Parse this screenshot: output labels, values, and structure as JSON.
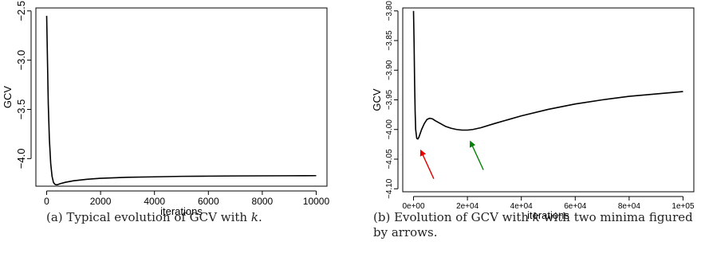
{
  "chart_data": [
    {
      "type": "line",
      "title": "",
      "xlabel": "iterations",
      "ylabel": "GCV",
      "xlim": [
        0,
        10000
      ],
      "ylim": [
        -4.25,
        -2.5
      ],
      "x_ticks": [
        0,
        2000,
        4000,
        6000,
        8000,
        10000
      ],
      "x_tick_labels": [
        "0",
        "2000",
        "4000",
        "6000",
        "8000",
        "10000"
      ],
      "y_ticks": [
        -2.5,
        -3.0,
        -3.5,
        -4.0
      ],
      "y_tick_labels": [
        "-2.5",
        "-3.0",
        "-3.5",
        "-4.0"
      ],
      "grid": false,
      "series": [
        {
          "color": "#000000",
          "x": [
            0,
            30,
            60,
            100,
            150,
            200,
            250,
            300,
            350,
            400,
            500,
            700,
            1000,
            1500,
            2000,
            3000,
            4000,
            5000,
            6000,
            7000,
            8000,
            9000,
            10000
          ],
          "y": [
            -2.55,
            -3.0,
            -3.45,
            -3.8,
            -4.05,
            -4.18,
            -4.24,
            -4.26,
            -4.265,
            -4.265,
            -4.255,
            -4.24,
            -4.225,
            -4.21,
            -4.2,
            -4.19,
            -4.185,
            -4.18,
            -4.178,
            -4.176,
            -4.175,
            -4.174,
            -4.173
          ]
        }
      ],
      "caption": "(a) Typical evolution of GCV with k."
    },
    {
      "type": "line",
      "title": "",
      "xlabel": "iterations",
      "ylabel": "GCV",
      "xlim": [
        0,
        100000
      ],
      "ylim": [
        -4.1,
        -3.8
      ],
      "x_ticks": [
        0,
        20000,
        40000,
        60000,
        80000,
        100000
      ],
      "x_tick_labels": [
        "0e+00",
        "2e+04",
        "4e+04",
        "6e+04",
        "8e+04",
        "1e+05"
      ],
      "y_ticks": [
        -3.8,
        -3.85,
        -3.9,
        -3.95,
        -4.0,
        -4.05,
        -4.1
      ],
      "y_tick_labels": [
        "-3.80",
        "-3.85",
        "-3.90",
        "-3.95",
        "-4.00",
        "-4.05",
        "-4.10"
      ],
      "grid": false,
      "series": [
        {
          "color": "#000000",
          "x": [
            0,
            200,
            400,
            600,
            800,
            1200,
            1600,
            2000,
            3000,
            4000,
            5000,
            6000,
            7000,
            8000,
            10000,
            12000,
            14000,
            16000,
            18000,
            20000,
            22000,
            25000,
            30000,
            40000,
            50000,
            60000,
            70000,
            80000,
            90000,
            100000
          ],
          "y": [
            -3.8,
            -3.85,
            -3.92,
            -3.97,
            -4.0,
            -4.015,
            -4.016,
            -4.013,
            -4.0,
            -3.99,
            -3.983,
            -3.981,
            -3.982,
            -3.985,
            -3.99,
            -3.995,
            -3.998,
            -4.0,
            -4.001,
            -4.001,
            -4.0,
            -3.997,
            -3.99,
            -3.977,
            -3.966,
            -3.957,
            -3.95,
            -3.944,
            -3.94,
            -3.936
          ]
        }
      ],
      "annotations": [
        {
          "type": "arrow",
          "color": "#e00000",
          "points_to": {
            "x": 1600,
            "y": -4.016
          }
        },
        {
          "type": "arrow",
          "color": "#008000",
          "points_to": {
            "x": 20000,
            "y": -4.001
          }
        }
      ],
      "caption": "(b) Evolution of GCV with k with two minima figured by arrows."
    }
  ],
  "captions": {
    "a_prefix": "(a) Typical evolution of GCV with ",
    "a_var": "k",
    "a_suffix": ".",
    "b_prefix": "(b) Evolution of GCV with ",
    "b_var": "k",
    "b_suffix": " with two minima figured by arrows."
  }
}
